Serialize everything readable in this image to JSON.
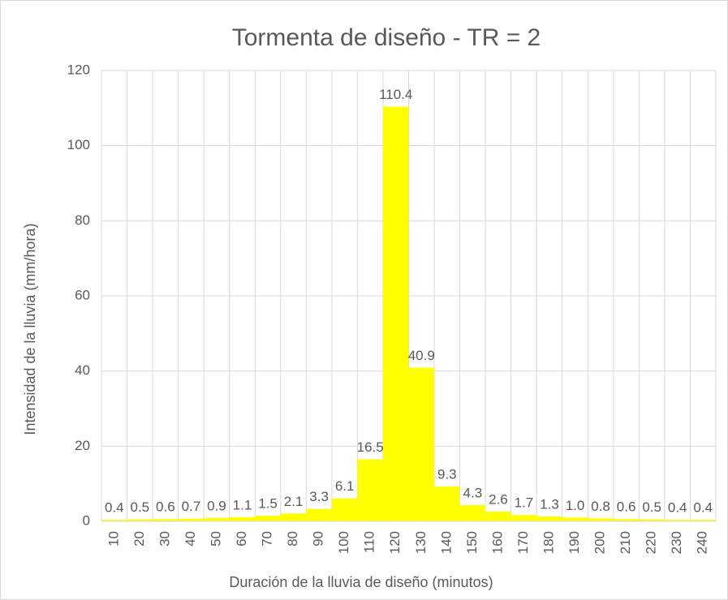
{
  "chart_data": {
    "type": "bar",
    "title": "Tormenta de diseño - TR = 2",
    "x_label": "Duración de la lluvia de diseño (minutos)",
    "y_label": "Intensidad de la lluvia (mm/hora)",
    "categories": [
      "10",
      "20",
      "30",
      "40",
      "50",
      "60",
      "70",
      "80",
      "90",
      "100",
      "110",
      "120",
      "130",
      "140",
      "150",
      "160",
      "170",
      "180",
      "190",
      "200",
      "210",
      "220",
      "230",
      "240"
    ],
    "values": [
      0.4,
      0.5,
      0.6,
      0.7,
      0.9,
      1.1,
      1.5,
      2.1,
      3.3,
      6.1,
      16.5,
      110.4,
      40.9,
      9.3,
      4.3,
      2.6,
      1.7,
      1.3,
      1.0,
      0.8,
      0.6,
      0.5,
      0.4,
      0.4
    ],
    "value_labels": [
      "0.4",
      "0.5",
      "0.6",
      "0.7",
      "0.9",
      "1.1",
      "1.5",
      "2.1",
      "3.3",
      "6.1",
      "16.5",
      "110.4",
      "40.9",
      "9.3",
      "4.3",
      "2.6",
      "1.7",
      "1.3",
      "1.0",
      "0.8",
      "0.6",
      "0.5",
      "0.4",
      "0.4"
    ],
    "color": "#ffff00",
    "ylim": [
      0,
      120
    ],
    "yticks": [
      0,
      20,
      40,
      60,
      80,
      100,
      120
    ],
    "grid": true
  }
}
